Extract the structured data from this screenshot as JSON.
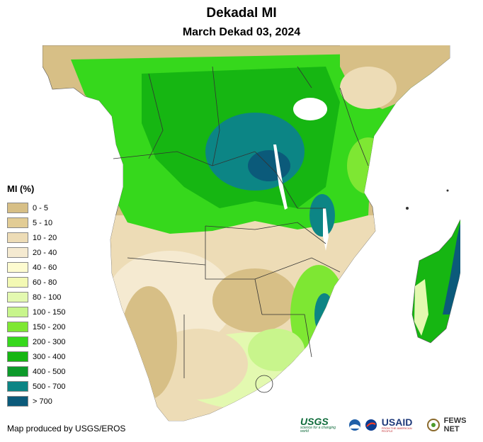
{
  "title": "Dekadal MI",
  "subtitle": "March Dekad 03, 2024",
  "legend": {
    "title": "MI (%)",
    "items": [
      {
        "label": "0 - 5",
        "color": "#d7bf86"
      },
      {
        "label": "5 - 10",
        "color": "#e2cc95"
      },
      {
        "label": "10 - 20",
        "color": "#eddcb6"
      },
      {
        "label": "20 - 40",
        "color": "#f5ead1"
      },
      {
        "label": "40 - 60",
        "color": "#fdfbd0"
      },
      {
        "label": "60 - 80",
        "color": "#f3f9b4"
      },
      {
        "label": "80 - 100",
        "color": "#e3f9b0"
      },
      {
        "label": "100 - 150",
        "color": "#c8f58c"
      },
      {
        "label": "150 - 200",
        "color": "#7ee733"
      },
      {
        "label": "200 - 300",
        "color": "#36d81c"
      },
      {
        "label": "300 - 400",
        "color": "#16b612"
      },
      {
        "label": "400 - 500",
        "color": "#0d9a2a"
      },
      {
        "label": "500 - 700",
        "color": "#0c8585"
      },
      {
        "label": "> 700",
        "color": "#0b5a7a"
      }
    ]
  },
  "credit": "Map produced by USGS/EROS",
  "logos": {
    "usgs": "USGS",
    "usgs_tagline": "science for a changing world",
    "usaid": "USAID",
    "usaid_tagline": "FROM THE AMERICAN PEOPLE",
    "fews": "FEWS NET"
  },
  "map_colors": {
    "dry": "#d7bf86",
    "semi": "#eddcb6",
    "light": "#f5ead1",
    "pale": "#e3f9b0",
    "lime": "#7ee733",
    "green": "#36d81c",
    "dark_green": "#16b612",
    "teal": "#0c8585",
    "deep": "#0b5a7a",
    "border": "#333333",
    "water": "#ffffff"
  }
}
